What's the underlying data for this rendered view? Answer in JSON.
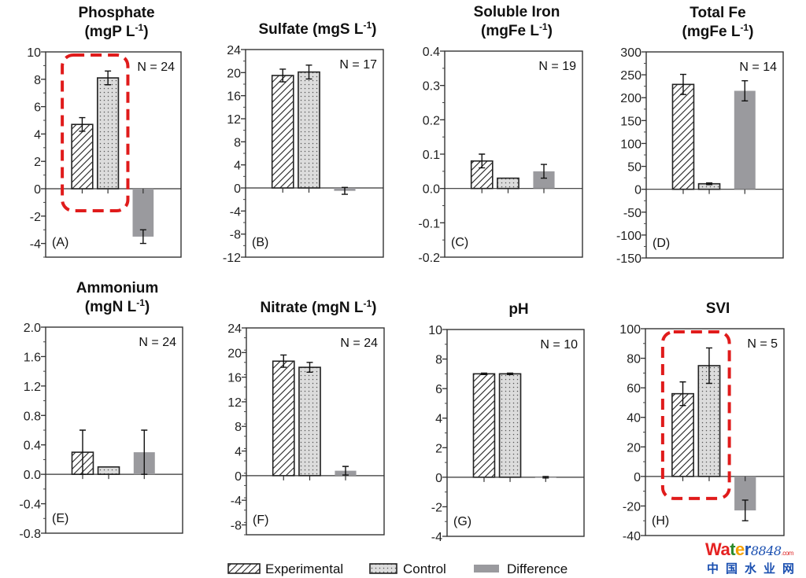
{
  "figure": {
    "legend": [
      {
        "key": "experimental",
        "label": "Experimental"
      },
      {
        "key": "control",
        "label": "Control"
      },
      {
        "key": "difference",
        "label": "Difference"
      }
    ],
    "colors": {
      "difference_fill": "#9a9a9e",
      "control_fill": "#dcdcdc",
      "highlight": "#e01b1b"
    },
    "watermark": {
      "word_letters": [
        {
          "ch": "W",
          "color": "#e52222"
        },
        {
          "ch": "a",
          "color": "#e52222"
        },
        {
          "ch": "t",
          "color": "#2a8a2a"
        },
        {
          "ch": "e",
          "color": "#f5a000"
        },
        {
          "ch": "r",
          "color": "#1a4fb0"
        }
      ],
      "number": "8848",
      "suffix": ".com",
      "chinese": "中国水业网"
    }
  },
  "chart_data": [
    {
      "type": "bar",
      "panel": "(A)",
      "title_lines": [
        "Phosphate",
        "(mgP L",
        "-1",
        ")"
      ],
      "title_layout": "two-line",
      "n_label": "N = 24",
      "categories": [
        "Experimental",
        "Control",
        "Difference"
      ],
      "values": [
        4.7,
        8.1,
        -3.5
      ],
      "errors": [
        0.5,
        0.5,
        0.5
      ],
      "ylim": [
        -5,
        10
      ],
      "yticks": [
        10,
        8,
        6,
        4,
        2,
        0,
        -2,
        -4
      ],
      "ytick_labels": [
        "10",
        "8",
        "6",
        "4",
        "2",
        "0",
        "-2",
        "-4"
      ],
      "highlighted": [
        "Experimental",
        "Control"
      ]
    },
    {
      "type": "bar",
      "panel": "(B)",
      "title_lines": [
        "Sulfate (mgS L",
        "-1",
        ")"
      ],
      "title_layout": "one-line",
      "n_label": "N = 17",
      "categories": [
        "Experimental",
        "Control",
        "Difference"
      ],
      "values": [
        19.5,
        20.1,
        -0.5
      ],
      "errors": [
        1.1,
        1.2,
        0.6
      ],
      "ylim": [
        -12,
        24
      ],
      "yticks": [
        24,
        20,
        16,
        12,
        8,
        4,
        0,
        -4,
        -8,
        -12
      ],
      "ytick_labels": [
        "24",
        "20",
        "16",
        "12",
        "8",
        "4",
        "0",
        "-4",
        "-8",
        "-12"
      ],
      "highlighted": []
    },
    {
      "type": "bar",
      "panel": "(C)",
      "title_lines": [
        "Soluble Iron",
        "(mgFe L",
        "-1",
        ")"
      ],
      "title_layout": "two-line",
      "n_label": "N = 19",
      "categories": [
        "Experimental",
        "Control",
        "Difference"
      ],
      "values": [
        0.08,
        0.03,
        0.05
      ],
      "errors": [
        0.02,
        0.0,
        0.02
      ],
      "ylim": [
        -0.2,
        0.4
      ],
      "yticks": [
        0.4,
        0.3,
        0.2,
        0.1,
        0.0,
        -0.1,
        -0.2
      ],
      "ytick_labels": [
        "0.4",
        "0.3",
        "0.2",
        "0.1",
        "0.0",
        "-0.1",
        "-0.2"
      ],
      "highlighted": []
    },
    {
      "type": "bar",
      "panel": "(D)",
      "title_lines": [
        "Total Fe",
        "(mgFe L",
        "-1",
        ")"
      ],
      "title_layout": "two-line",
      "n_label": "N = 14",
      "categories": [
        "Experimental",
        "Control",
        "Difference"
      ],
      "values": [
        229,
        12,
        215
      ],
      "errors": [
        22,
        2,
        22
      ],
      "ylim": [
        -150,
        300
      ],
      "yticks": [
        300,
        250,
        200,
        150,
        100,
        50,
        0,
        -50,
        -100,
        -150
      ],
      "ytick_labels": [
        "300",
        "250",
        "200",
        "150",
        "100",
        "50",
        "0",
        "-50",
        "-100",
        "-150"
      ],
      "highlighted": []
    },
    {
      "type": "bar",
      "panel": "(E)",
      "title_lines": [
        "Ammonium",
        "(mgN L",
        "-1",
        ")"
      ],
      "title_layout": "two-line",
      "n_label": "N = 24",
      "categories": [
        "Experimental",
        "Control",
        "Difference"
      ],
      "values": [
        0.3,
        0.1,
        0.3
      ],
      "errors": [
        0.3,
        0.0,
        0.3
      ],
      "ylim": [
        -0.8,
        2.0
      ],
      "yticks": [
        2.0,
        1.6,
        1.2,
        0.8,
        0.4,
        0.0,
        -0.4,
        -0.8
      ],
      "ytick_labels": [
        "2.0",
        "1.6",
        "1.2",
        "0.8",
        "0.4",
        "0.0",
        "-0.4",
        "-0.8"
      ],
      "highlighted": []
    },
    {
      "type": "bar",
      "panel": "(F)",
      "title_lines": [
        "Nitrate (mgN L",
        "-1",
        ")"
      ],
      "title_layout": "one-line",
      "n_label": "N = 24",
      "categories": [
        "Experimental",
        "Control",
        "Difference"
      ],
      "values": [
        18.6,
        17.6,
        0.8
      ],
      "errors": [
        1.0,
        0.8,
        0.7
      ],
      "ylim": [
        -9.6,
        24
      ],
      "yticks": [
        24,
        20,
        16,
        12,
        8,
        4,
        0,
        -4,
        -8
      ],
      "ytick_labels": [
        "24",
        "20",
        "16",
        "12",
        "8",
        "4",
        "0",
        "-4",
        "-8"
      ],
      "highlighted": []
    },
    {
      "type": "bar",
      "panel": "(G)",
      "title_lines": [
        "pH"
      ],
      "title_layout": "plain",
      "n_label": "N = 10",
      "categories": [
        "Experimental",
        "Control",
        "Difference"
      ],
      "values": [
        7.0,
        7.0,
        0.0
      ],
      "errors": [
        0.05,
        0.05,
        0.05
      ],
      "ylim": [
        -4,
        10
      ],
      "yticks": [
        10,
        8,
        6,
        4,
        2,
        0,
        -2,
        -4
      ],
      "ytick_labels": [
        "10",
        "8",
        "6",
        "4",
        "2",
        "0",
        "-2",
        "-4"
      ],
      "highlighted": []
    },
    {
      "type": "bar",
      "panel": "(H)",
      "title_lines": [
        "SVI"
      ],
      "title_layout": "plain",
      "n_label": "N = 5",
      "categories": [
        "Experimental",
        "Control",
        "Difference"
      ],
      "values": [
        56,
        75,
        -23
      ],
      "errors": [
        8,
        12,
        7
      ],
      "ylim": [
        -40,
        100
      ],
      "yticks": [
        100,
        80,
        60,
        40,
        20,
        0,
        -20,
        -40
      ],
      "ytick_labels": [
        "100",
        "80",
        "60",
        "40",
        "20",
        "0",
        "-20",
        "-40"
      ],
      "highlighted": [
        "Experimental",
        "Control"
      ]
    }
  ]
}
